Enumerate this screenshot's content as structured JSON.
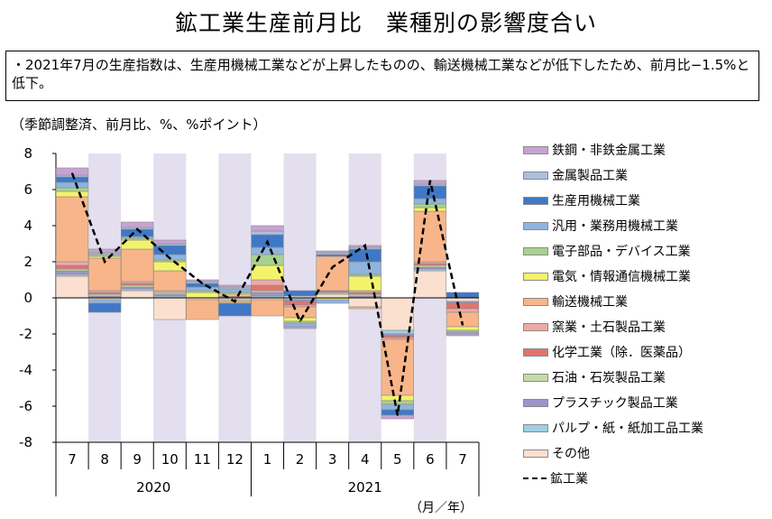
{
  "title": "鉱工業生産前月比　業種別の影響度合い",
  "note": "・2021年7月の生産指数は、生産用機械工業などが上昇したものの、輸送機械工業などが低下したため、前月比−1.5%と低下。",
  "unit_label": "（季節調整済、前月比、%、%ポイント）",
  "axis_unit_label": "（月／年）",
  "chart_data": {
    "type": "bar",
    "stacked": true,
    "categories": [
      "7",
      "8",
      "9",
      "10",
      "11",
      "12",
      "1",
      "2",
      "3",
      "4",
      "5",
      "6",
      "7"
    ],
    "year_labels": [
      {
        "label": "2020",
        "first": 0,
        "last": 5
      },
      {
        "label": "2021",
        "first": 6,
        "last": 12
      }
    ],
    "shaded_categories": [
      1,
      3,
      5,
      7,
      9,
      11
    ],
    "ylim": [
      -8,
      8
    ],
    "yticks": [
      -8,
      -6,
      -4,
      -2,
      0,
      2,
      4,
      6,
      8
    ],
    "series": [
      {
        "name": "その他",
        "color": "#fbe0d0",
        "values": [
          1.2,
          -0.1,
          0.4,
          -1.2,
          -0.1,
          -0.1,
          -0.1,
          0.1,
          0.2,
          -0.5,
          -1.8,
          1.5,
          -0.2
        ]
      },
      {
        "name": "パルプ・紙・紙加工品工業",
        "color": "#9fcfe3",
        "values": [
          0.1,
          0.0,
          0.1,
          0.1,
          0.0,
          0.0,
          0.1,
          -0.1,
          0.1,
          0.0,
          -0.2,
          0.1,
          0.0
        ]
      },
      {
        "name": "プラスチック製品工業",
        "color": "#9f93c8",
        "values": [
          0.2,
          0.1,
          0.1,
          0.1,
          0.0,
          0.0,
          0.2,
          -0.1,
          0.0,
          0.1,
          -0.1,
          0.1,
          -0.1
        ]
      },
      {
        "name": "石油・石炭製品工業",
        "color": "#c4dba8",
        "values": [
          0.1,
          0.1,
          0.1,
          0.1,
          0.0,
          -0.1,
          0.1,
          0.0,
          0.0,
          0.1,
          0.0,
          0.1,
          0.0
        ]
      },
      {
        "name": "化学工業（除．医薬品）",
        "color": "#e07570",
        "values": [
          0.2,
          0.1,
          0.1,
          0.0,
          0.0,
          0.1,
          0.3,
          -0.2,
          0.1,
          0.1,
          -0.1,
          0.1,
          -0.3
        ]
      },
      {
        "name": "窯業・土石製品工業",
        "color": "#eeaaa5",
        "values": [
          0.2,
          0.1,
          0.1,
          0.1,
          0.0,
          0.0,
          0.3,
          -0.1,
          0.0,
          0.1,
          -0.1,
          0.1,
          -0.2
        ]
      },
      {
        "name": "輸送機械工業",
        "color": "#f8b58a",
        "values": [
          3.6,
          1.8,
          1.8,
          1.1,
          -1.1,
          -0.1,
          -0.9,
          -0.6,
          1.9,
          -0.1,
          -3.1,
          2.8,
          -0.8
        ]
      },
      {
        "name": "電気・情報通信機械工業",
        "color": "#f3f36b",
        "values": [
          0.3,
          0.1,
          0.5,
          0.5,
          0.3,
          0.1,
          0.8,
          -0.2,
          -0.1,
          0.8,
          -0.3,
          0.2,
          -0.2
        ]
      },
      {
        "name": "電子部品・デバイス工業",
        "color": "#a9d18e",
        "values": [
          0.2,
          0.1,
          0.1,
          0.1,
          0.1,
          0.1,
          0.6,
          -0.1,
          0.0,
          0.1,
          -0.2,
          0.2,
          -0.1
        ]
      },
      {
        "name": "汎用・業務用機械工業",
        "color": "#8fb4de",
        "values": [
          0.3,
          -0.2,
          0.1,
          0.3,
          0.2,
          0.2,
          0.4,
          -0.2,
          -0.2,
          0.7,
          -0.3,
          0.3,
          -0.1
        ]
      },
      {
        "name": "生産用機械工業",
        "color": "#3f78c7",
        "values": [
          0.3,
          -0.5,
          0.4,
          0.5,
          0.2,
          -0.7,
          0.7,
          0.3,
          0.1,
          0.7,
          -0.3,
          0.7,
          0.3
        ]
      },
      {
        "name": "金属製品工業",
        "color": "#abc0de",
        "values": [
          0.1,
          0.1,
          0.1,
          0.1,
          0.1,
          0.1,
          0.2,
          0.0,
          0.1,
          0.1,
          0.0,
          0.1,
          0.0
        ]
      },
      {
        "name": "鉄鋼・非鉄金属工業",
        "color": "#c7a3d4",
        "values": [
          0.4,
          0.2,
          0.3,
          0.2,
          0.1,
          0.1,
          0.3,
          -0.1,
          0.1,
          0.1,
          -0.2,
          0.2,
          -0.1
        ]
      }
    ],
    "line": {
      "name": "鉱工業",
      "values": [
        6.9,
        2.0,
        3.8,
        2.2,
        0.8,
        -0.2,
        3.1,
        -1.3,
        1.7,
        2.9,
        -6.5,
        6.5,
        -1.5
      ]
    },
    "legend_order": [
      "鉄鋼・非鉄金属工業",
      "金属製品工業",
      "生産用機械工業",
      "汎用・業務用機械工業",
      "電子部品・デバイス工業",
      "電気・情報通信機械工業",
      "輸送機械工業",
      "窯業・土石製品工業",
      "化学工業（除．医薬品）",
      "石油・石炭製品工業",
      "プラスチック製品工業",
      "パルプ・紙・紙加工品工業",
      "その他",
      "鉱工業"
    ]
  }
}
